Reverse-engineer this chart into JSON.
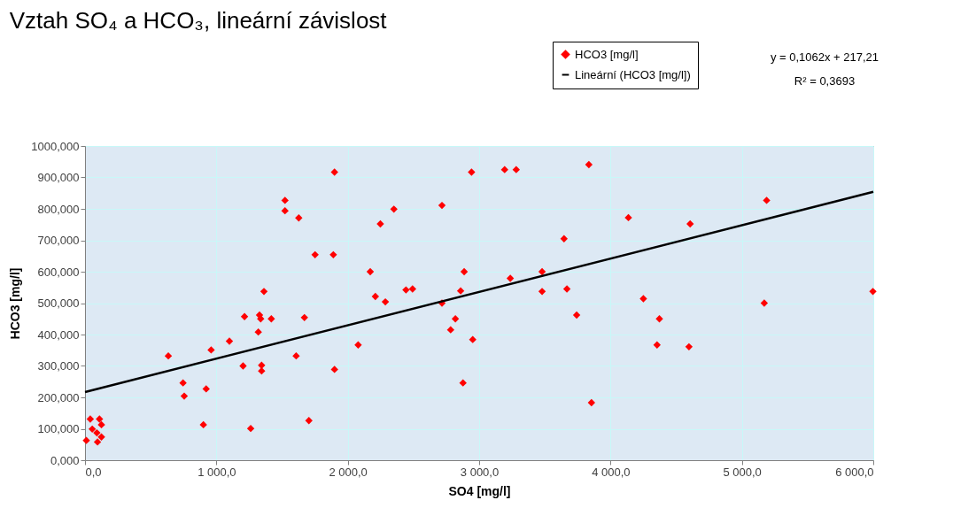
{
  "chart_data": {
    "type": "scatter",
    "title": "Vztah SO₄ a HCO₃, lineární závislost",
    "xlabel": "SO4 [mg/l]",
    "ylabel": "HCO3 [mg/l]",
    "series": [
      {
        "name": "HCO3 [mg/l]",
        "type": "scatter",
        "color": "#ff0000",
        "marker": "diamond",
        "x": [
          40,
          110,
          125,
          55,
          90,
          125,
          10,
          95,
          634,
          746,
          755,
          901,
          922,
          960,
          1099,
          1203,
          1214,
          1261,
          1319,
          1328,
          1337,
          1344,
          1344,
          1362,
          1418,
          1522,
          1522,
          1607,
          1627,
          1670,
          1704,
          1751,
          1890,
          1899,
          1899,
          2079,
          2171,
          2210,
          2248,
          2286,
          2351,
          2443,
          2493,
          2717,
          2717,
          2783,
          2819,
          2859,
          2877,
          2886,
          2942,
          2951,
          3194,
          3237,
          3282,
          3479,
          3479,
          3646,
          3668,
          3742,
          3835,
          3855,
          4136,
          4250,
          4354,
          4372,
          4597,
          4606,
          5170,
          5188,
          5997
        ],
        "values": [
          131,
          131,
          113,
          99,
          87,
          74,
          63,
          58,
          332,
          246,
          204,
          113,
          227,
          351,
          379,
          300,
          457,
          101,
          408,
          462,
          450,
          302,
          284,
          537,
          450,
          827,
          794,
          332,
          771,
          454,
          126,
          654,
          654,
          917,
          289,
          367,
          600,
          521,
          752,
          504,
          799,
          542,
          545,
          811,
          500,
          415,
          450,
          539,
          246,
          600,
          917,
          384,
          925,
          579,
          925,
          600,
          537,
          705,
          545,
          462,
          941,
          183,
          772,
          514,
          367,
          450,
          361,
          752,
          500,
          827,
          537
        ]
      },
      {
        "name": "Lineární (HCO3 [mg/l])",
        "type": "line",
        "color": "#000000",
        "marker": "none",
        "line_style": "solid",
        "x": [
          0,
          6000
        ],
        "values": [
          217,
          854
        ]
      }
    ],
    "xlim": [
      0,
      6000
    ],
    "xticks": [
      {
        "value": 0,
        "label": "0,0"
      },
      {
        "value": 1000,
        "label": "1 000,0"
      },
      {
        "value": 2000,
        "label": "2 000,0"
      },
      {
        "value": 3000,
        "label": "3 000,0"
      },
      {
        "value": 4000,
        "label": "4 000,0"
      },
      {
        "value": 5000,
        "label": "5 000,0"
      },
      {
        "value": 6000,
        "label": "6 000,0"
      }
    ],
    "ylim": [
      0,
      1000
    ],
    "yticks": [
      {
        "value": 0,
        "label": "0,000"
      },
      {
        "value": 100,
        "label": "100,000"
      },
      {
        "value": 200,
        "label": "200,000"
      },
      {
        "value": 300,
        "label": "300,000"
      },
      {
        "value": 400,
        "label": "400,000"
      },
      {
        "value": 500,
        "label": "500,000"
      },
      {
        "value": 600,
        "label": "600,000"
      },
      {
        "value": 700,
        "label": "700,000"
      },
      {
        "value": 800,
        "label": "800,000"
      },
      {
        "value": 900,
        "label": "900,000"
      },
      {
        "value": 1000,
        "label": "1000,000"
      }
    ],
    "grid": true,
    "legend": "top right",
    "annotations": [
      "y = 0,1062x + 217,21",
      "R² = 0,3693"
    ]
  }
}
